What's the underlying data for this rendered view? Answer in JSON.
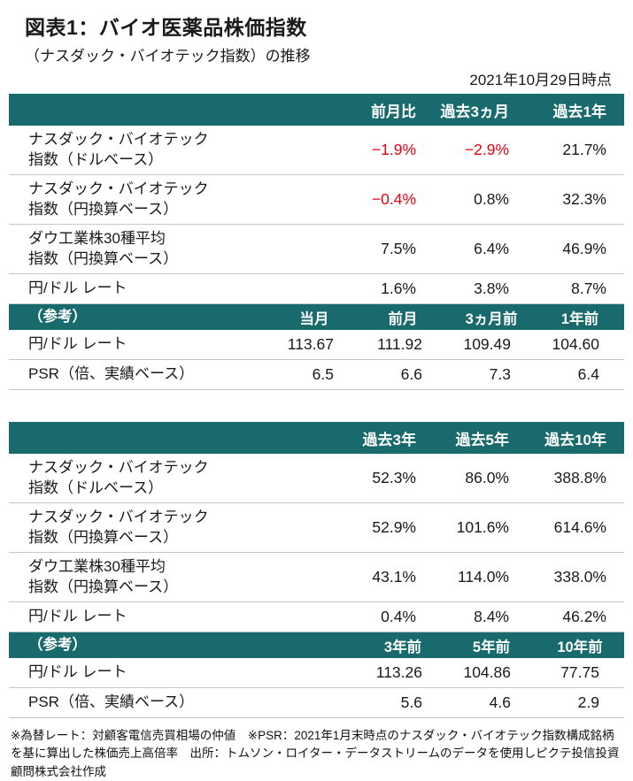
{
  "colors": {
    "teal": "#186a6d",
    "negative_red": "#e60012"
  },
  "header": {
    "title": "図表1：バイオ医薬品株価指数",
    "subtitle": "（ナスダック・バイオテック指数）の推移",
    "as_of": "2021年10月29日時点"
  },
  "table1": {
    "columns": [
      "前月比",
      "過去3ヵ月",
      "過去1年"
    ],
    "rows": [
      {
        "label": [
          "ナスダック・バイオテック",
          "指数（ドルベース）"
        ],
        "values": [
          "−1.9%",
          "−2.9%",
          "21.7%"
        ]
      },
      {
        "label": [
          "ナスダック・バイオテック",
          "指数（円換算ベース）"
        ],
        "values": [
          "−0.4%",
          "0.8%",
          "32.3%"
        ]
      },
      {
        "label": [
          "ダウ工業株30種平均",
          "指数（円換算ベース）"
        ],
        "values": [
          "7.5%",
          "6.4%",
          "46.9%"
        ]
      },
      {
        "label": [
          "円/ドル レート"
        ],
        "values": [
          "1.6%",
          "3.8%",
          "8.7%"
        ]
      }
    ],
    "ref": {
      "label": "（参考）",
      "columns": [
        "当月",
        "前月",
        "3ヵ月前",
        "1年前"
      ],
      "rows": [
        {
          "label": "円/ドル レート",
          "values": [
            "113.67",
            "111.92",
            "109.49",
            "104.60"
          ]
        },
        {
          "label": "PSR（倍、実績ベース）",
          "values": [
            "6.5",
            "6.6",
            "7.3",
            "6.4"
          ]
        }
      ]
    }
  },
  "table2": {
    "columns": [
      "過去3年",
      "過去5年",
      "過去10年"
    ],
    "rows": [
      {
        "label": [
          "ナスダック・バイオテック",
          "指数（ドルベース）"
        ],
        "values": [
          "52.3%",
          "86.0%",
          "388.8%"
        ]
      },
      {
        "label": [
          "ナスダック・バイオテック",
          "指数（円換算ベース）"
        ],
        "values": [
          "52.9%",
          "101.6%",
          "614.6%"
        ]
      },
      {
        "label": [
          "ダウ工業株30種平均",
          "指数（円換算ベース）"
        ],
        "values": [
          "43.1%",
          "114.0%",
          "338.0%"
        ]
      },
      {
        "label": [
          "円/ドル レート"
        ],
        "values": [
          "0.4%",
          "8.4%",
          "46.2%"
        ]
      }
    ],
    "ref": {
      "label": "（参考）",
      "columns": [
        "3年前",
        "5年前",
        "10年前"
      ],
      "rows": [
        {
          "label": "円/ドル レート",
          "values": [
            "113.26",
            "104.86",
            "77.75"
          ]
        },
        {
          "label": "PSR（倍、実績ベース）",
          "values": [
            "5.6",
            "4.6",
            "2.9"
          ]
        }
      ]
    }
  },
  "footnote": "※為替レート：対顧客電信売買相場の仲値　※PSR：2021年1月末時点のナスダック・バイオテック指数構成銘柄を基に算出した株価売上高倍率　出所：トムソン・ロイター・データストリームのデータを使用しピクテ投信投資顧問株式会社作成"
}
